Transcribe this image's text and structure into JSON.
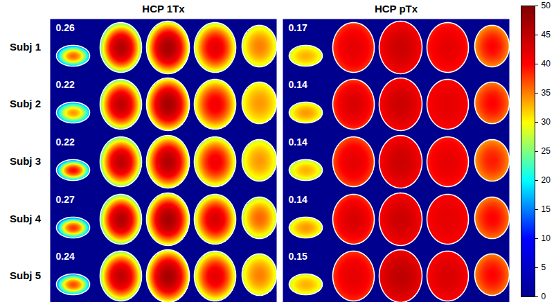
{
  "chart_data": {
    "type": "heatmap",
    "panels": [
      "HCP 1Tx",
      "HCP pTx"
    ],
    "rows": [
      "Subj 1",
      "Subj 2",
      "Subj 3",
      "Subj 4",
      "Subj 5"
    ],
    "panel_values": {
      "HCP 1Tx": [
        0.26,
        0.22,
        0.22,
        0.27,
        0.24
      ],
      "HCP pTx": [
        0.17,
        0.14,
        0.14,
        0.14,
        0.15
      ]
    },
    "slice_center": {
      "HCP 1Tx": [
        [
          36,
          46,
          47,
          42,
          35
        ],
        [
          34,
          45,
          47,
          41,
          34
        ],
        [
          40,
          45,
          46,
          41,
          34
        ],
        [
          38,
          46,
          47,
          43,
          36
        ],
        [
          37,
          45,
          47,
          42,
          35
        ]
      ],
      "HCP pTx": [
        [
          33,
          42,
          44,
          42,
          40
        ],
        [
          34,
          43,
          44,
          42,
          40
        ],
        [
          33,
          42,
          44,
          42,
          39
        ],
        [
          34,
          43,
          44,
          42,
          40
        ],
        [
          33,
          42,
          45,
          43,
          40
        ]
      ]
    },
    "slice_edge": {
      "HCP 1Tx": [
        [
          14,
          24,
          27,
          27,
          28
        ],
        [
          15,
          25,
          28,
          28,
          29
        ],
        [
          14,
          24,
          27,
          27,
          28
        ],
        [
          13,
          24,
          27,
          27,
          27
        ],
        [
          14,
          25,
          28,
          27,
          28
        ]
      ],
      "HCP pTx": [
        [
          28,
          38,
          40,
          39,
          34
        ],
        [
          28,
          38,
          40,
          40,
          35
        ],
        [
          27,
          37,
          40,
          39,
          34
        ],
        [
          28,
          38,
          40,
          40,
          35
        ],
        [
          28,
          38,
          41,
          40,
          35
        ]
      ]
    },
    "colorbar": {
      "range": [
        0,
        50
      ],
      "ticks": [
        0,
        5,
        10,
        15,
        20,
        25,
        30,
        35,
        40,
        45,
        50
      ]
    }
  }
}
